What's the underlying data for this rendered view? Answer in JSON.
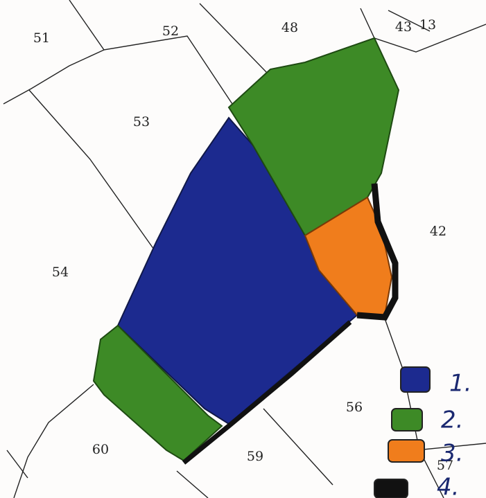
{
  "parcels": [
    {
      "label": "51"
    },
    {
      "label": "52"
    },
    {
      "label": "48"
    },
    {
      "label": "43"
    },
    {
      "label": "13"
    },
    {
      "label": "53"
    },
    {
      "label": "42"
    },
    {
      "label": "54"
    },
    {
      "label": "56"
    },
    {
      "label": "60"
    },
    {
      "label": "59"
    },
    {
      "label": "57"
    }
  ],
  "legend": [
    {
      "label": "1.",
      "color": "#1c2a8f"
    },
    {
      "label": "2.",
      "color": "#3d8a26"
    },
    {
      "label": "3.",
      "color": "#f07d1c"
    },
    {
      "label": "4.",
      "color": "#111111"
    }
  ]
}
